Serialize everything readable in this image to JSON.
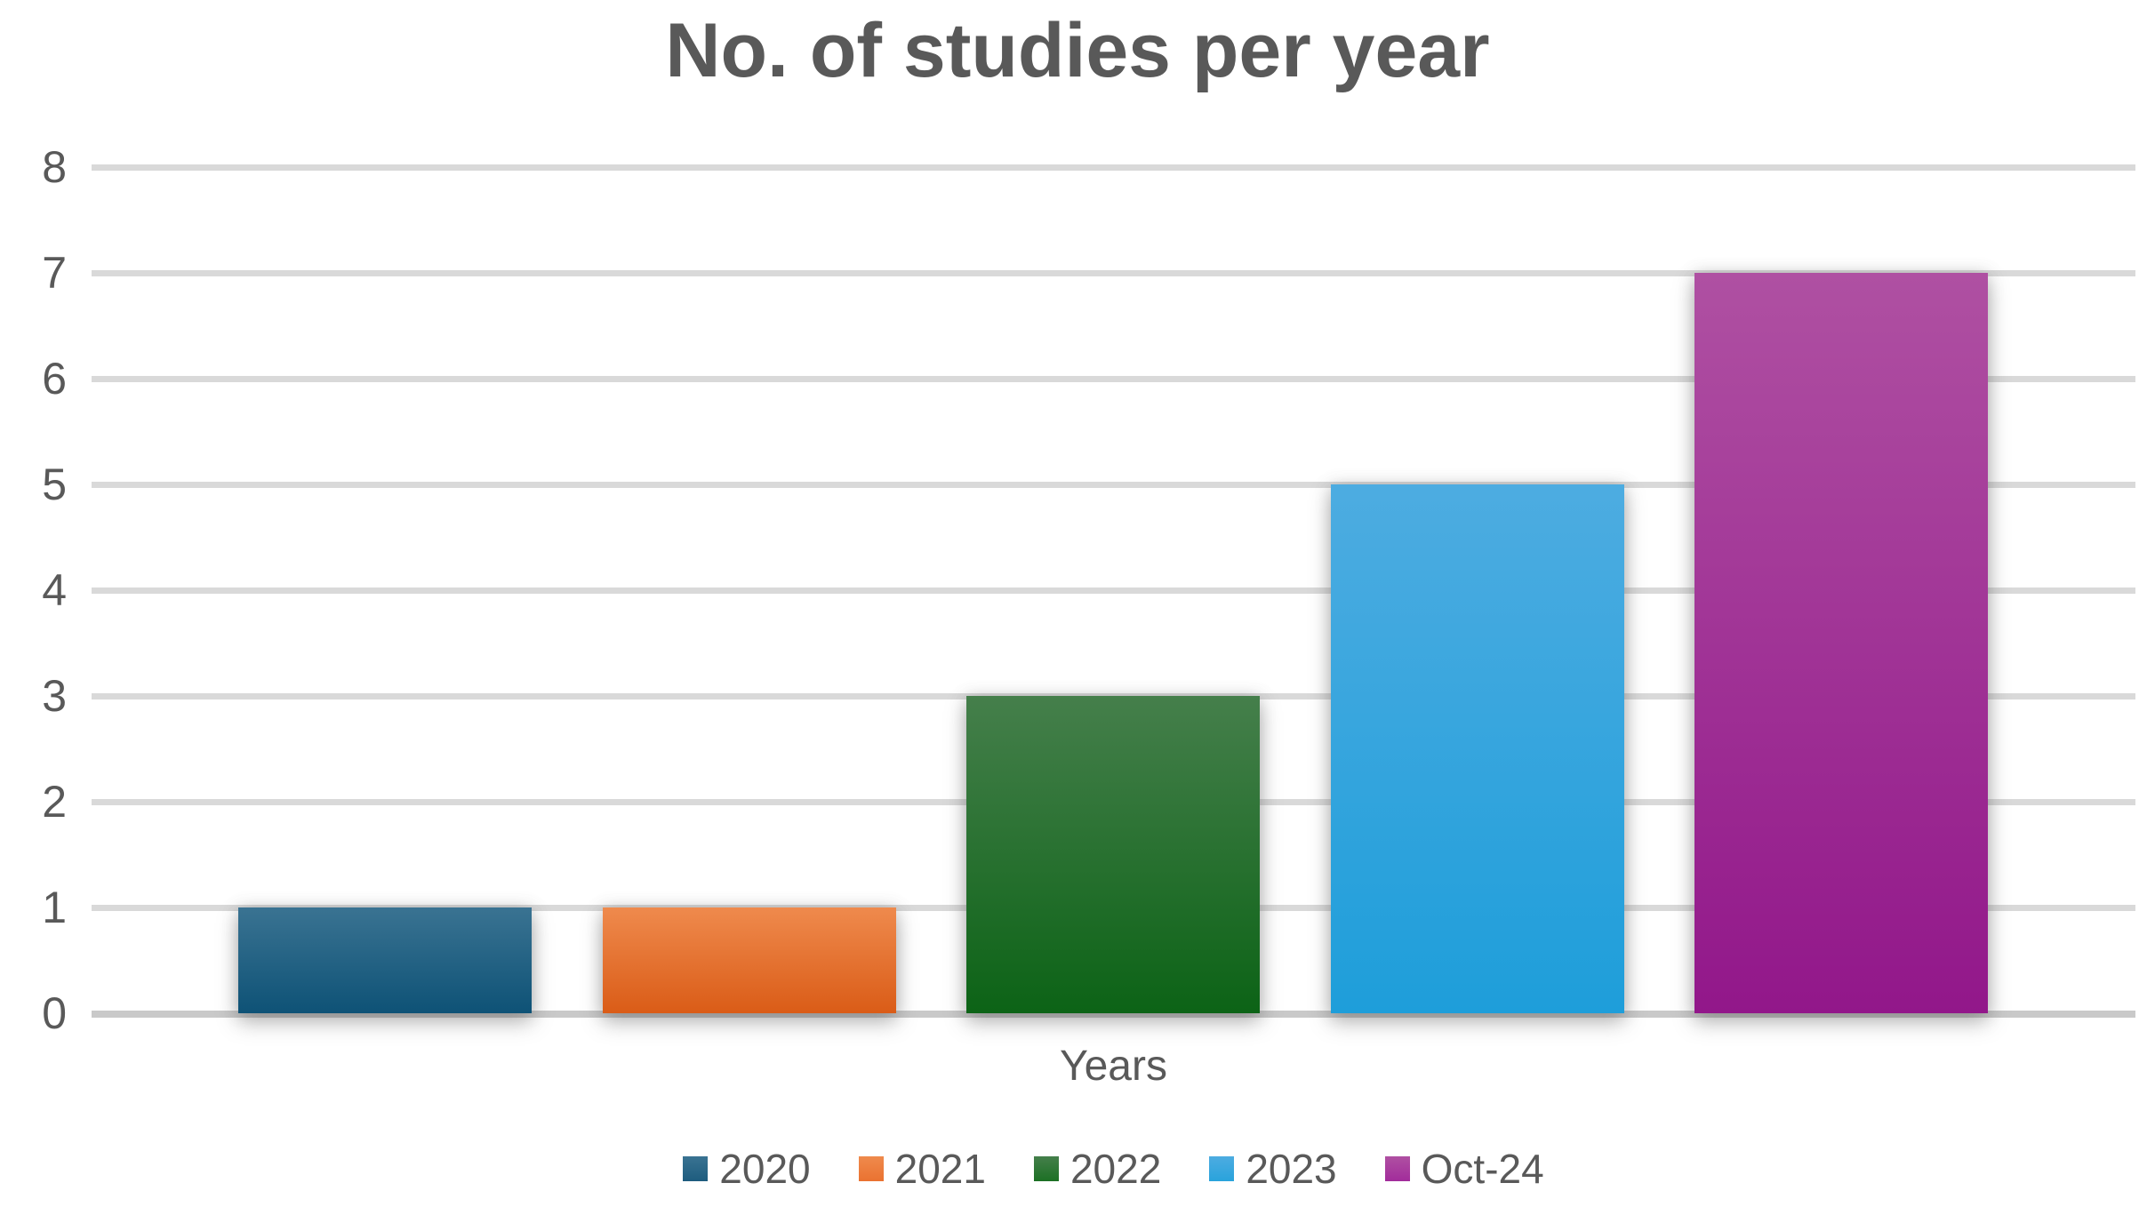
{
  "title": "No. of studies per year",
  "chart_data": {
    "type": "bar",
    "title": "No. of studies per year",
    "categories": [
      "2020",
      "2021",
      "2022",
      "2023",
      "Oct-24"
    ],
    "values": [
      1,
      1,
      3,
      5,
      7
    ],
    "xlabel": "Years",
    "ylabel": "",
    "ylim": [
      0,
      8
    ],
    "yticks": [
      0,
      1,
      2,
      3,
      4,
      5,
      6,
      7,
      8
    ],
    "grid": true,
    "legend_position": "bottom",
    "legend_labels": [
      "2020",
      "2021",
      "2022",
      "2023",
      "Oct-24"
    ],
    "series_styles": [
      {
        "name": "2020",
        "color_top": "#3A7392",
        "color_bottom": "#0E5276",
        "legend_color": "#1E5C7E"
      },
      {
        "name": "2021",
        "color_top": "#EF8A4D",
        "color_bottom": "#DA5C17",
        "legend_color": "#EA7231"
      },
      {
        "name": "2022",
        "color_top": "#457F4B",
        "color_bottom": "#0C6316",
        "legend_color": "#1C7024"
      },
      {
        "name": "2023",
        "color_top": "#4DACE1",
        "color_bottom": "#1E9EDA",
        "legend_color": "#29A3DC"
      },
      {
        "name": "Oct-24",
        "color_top": "#AF50A2",
        "color_bottom": "#92178A",
        "legend_color": "#A22C9B"
      }
    ],
    "text_color": "#595959",
    "gridline_color": "#D9D9D9",
    "axis_line_color": "#C9C9C9"
  }
}
